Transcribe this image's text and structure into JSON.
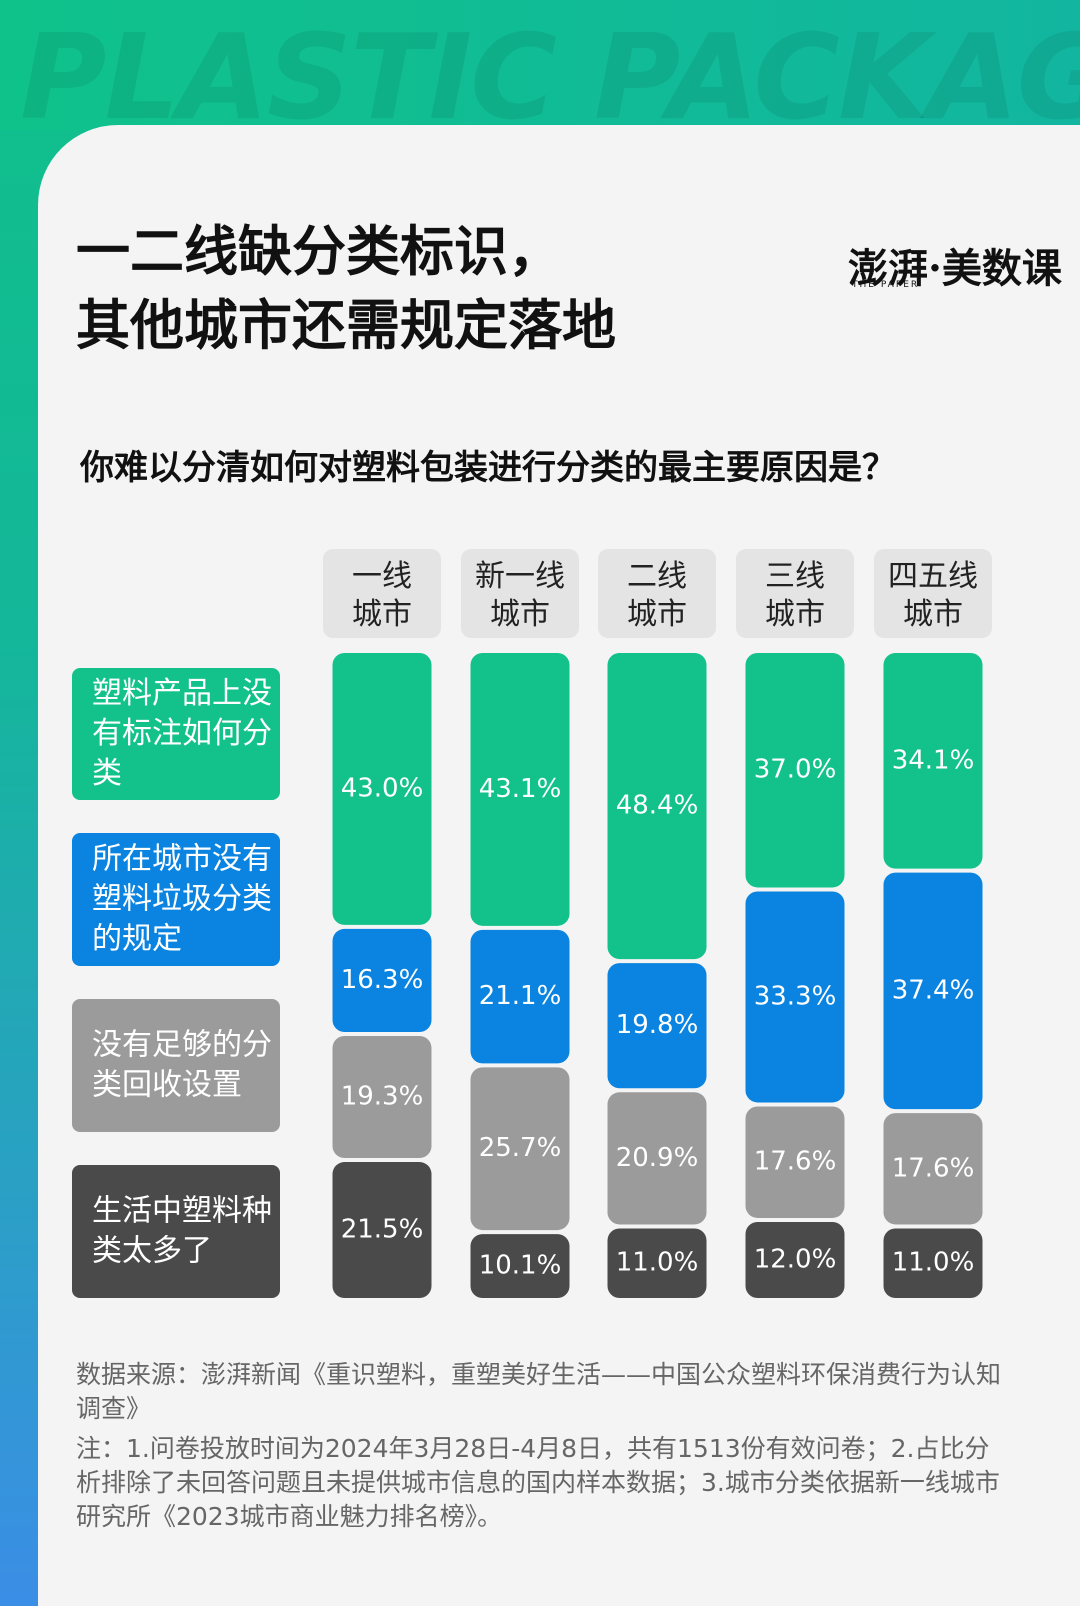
{
  "background_text": "PLASTIC PACKAGES",
  "logo": {
    "name": "澎湃·美数课",
    "sub": "THE PAPER"
  },
  "chart_data": {
    "type": "stacked-bar",
    "title": "一二线缺分类标识，\n其他城市还需规定落地",
    "subtitle": "你难以分清如何对塑料包装进行分类的最主要原因是？",
    "categories": [
      "一线\n城市",
      "新一线\n城市",
      "二线\n城市",
      "三线\n城市",
      "四五线\n城市"
    ],
    "series": [
      {
        "name": "塑料产品上没有标注如何分类",
        "color": "#12c28a",
        "values": [
          43.0,
          43.1,
          48.4,
          37.0,
          34.1
        ],
        "value_labels": [
          "43.0%",
          "43.1%",
          "48.4%",
          "37.0%",
          "34.1%"
        ]
      },
      {
        "name": "所在城市没有塑料垃圾分类的规定",
        "color": "#0a84e0",
        "values": [
          16.3,
          21.1,
          19.8,
          33.3,
          37.4
        ],
        "value_labels": [
          "16.3%",
          "21.1%",
          "19.8%",
          "33.3%",
          "37.4%"
        ]
      },
      {
        "name": "没有足够的分类回收设置",
        "color": "#9b9b9b",
        "values": [
          19.3,
          25.7,
          20.9,
          17.6,
          17.6
        ],
        "value_labels": [
          "19.3%",
          "25.7%",
          "20.9%",
          "17.6%",
          "17.6%"
        ]
      },
      {
        "name": "生活中塑料种类太多了",
        "color": "#4a4a4a",
        "values": [
          21.5,
          10.1,
          11.0,
          12.0,
          11.0
        ],
        "value_labels": [
          "21.5%",
          "10.1%",
          "11.0%",
          "12.0%",
          "11.0%"
        ]
      }
    ],
    "source": "数据来源：澎湃新闻《重识塑料，重塑美好生活——中国公众塑料环保消费行为认知调查》",
    "note": "注：1.问卷投放时间为2024年3月28日-4月8日，共有1513份有效问卷；2.占比分析排除了未回答问题且未提供城市信息的国内样本数据；3.城市分类依据新一线城市研究所《2023城市商业魅力排名榜》。"
  }
}
